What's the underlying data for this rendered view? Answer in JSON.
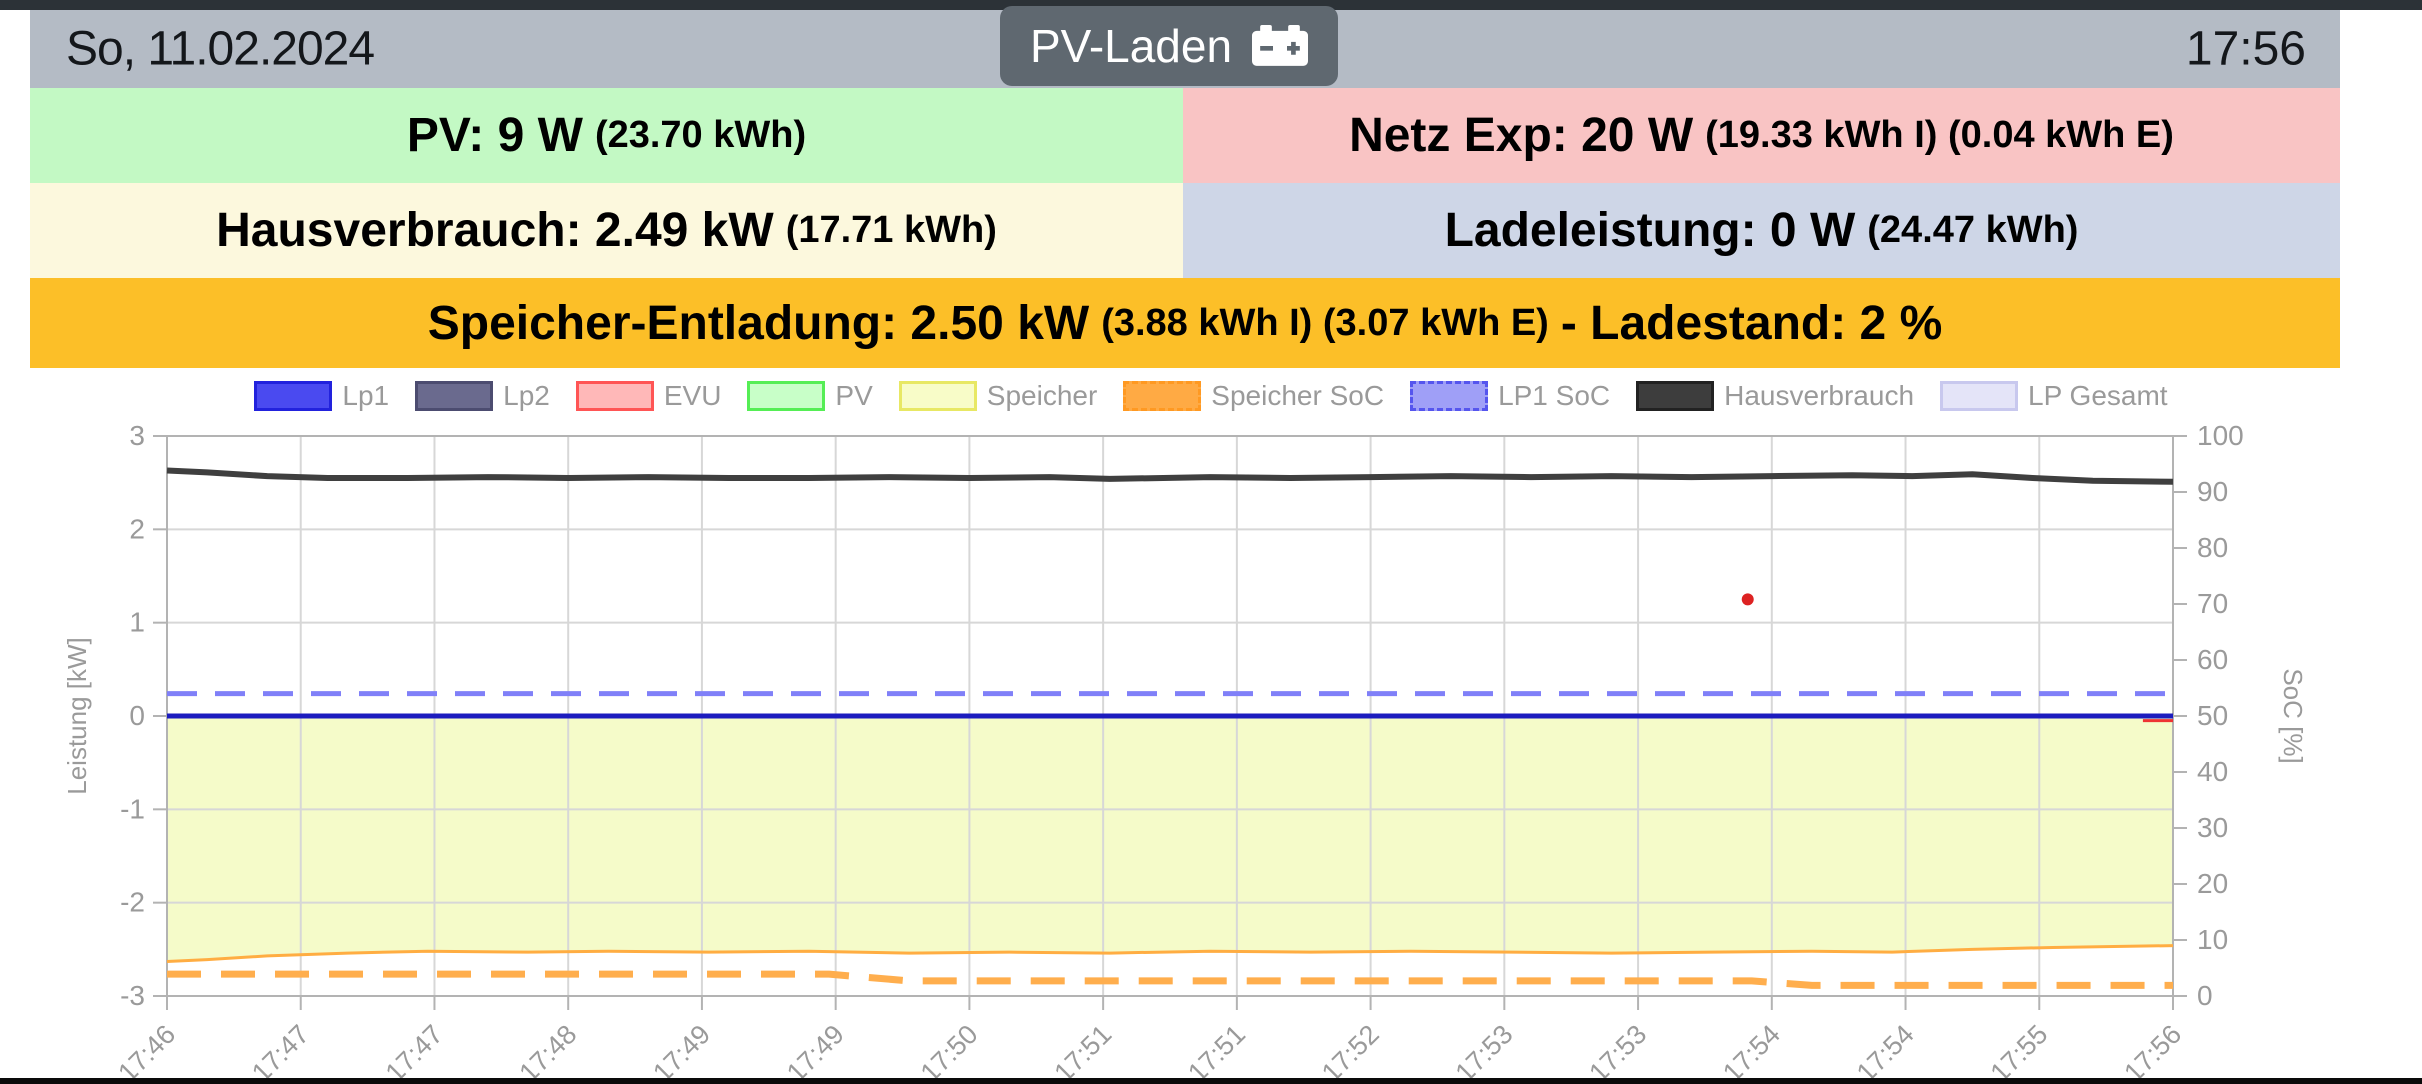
{
  "header": {
    "date": "So, 11.02.2024",
    "time": "17:56",
    "mode_button_label": "PV-Laden",
    "bar_color": "#b4bbc5",
    "button_color": "#5f6870"
  },
  "tiles": {
    "pv": {
      "main": "PV: 9 W",
      "sub": "(23.70 kWh)",
      "bg": "#c3f9c4"
    },
    "netz": {
      "main": "Netz Exp: 20 W",
      "sub": "(19.33 kWh I) (0.04 kWh E)",
      "bg": "#f9c4c4"
    },
    "haus": {
      "main": "Hausverbrauch: 2.49 kW",
      "sub": "(17.71 kWh)",
      "bg": "#fcf8dd"
    },
    "lade": {
      "main": "Ladeleistung: 0 W",
      "sub": "(24.47 kWh)",
      "bg": "#ced6e7"
    },
    "speicher": {
      "main": "Speicher-Entladung: 2.50 kW",
      "sub": "(3.88 kWh I) (3.07 kWh E)",
      "main2": "- Ladestand: 2 %",
      "bg": "#fcbf28"
    }
  },
  "chart_data": {
    "type": "line",
    "title": "",
    "grid": true,
    "legend_position": "top-center",
    "axes": {
      "left": {
        "label": "Leistung [kW]",
        "range": [
          -3,
          3
        ],
        "ticks": [
          3,
          2,
          1,
          0,
          -1,
          -2,
          -3
        ]
      },
      "right": {
        "label": "SoC [%]",
        "range": [
          0,
          100
        ],
        "ticks": [
          100,
          90,
          80,
          70,
          60,
          50,
          40,
          30,
          20,
          10,
          0
        ]
      },
      "x": {
        "tick_labels": [
          "17:46",
          "17:47",
          "17:47",
          "17:48",
          "17:49",
          "17:49",
          "17:50",
          "17:51",
          "17:51",
          "17:52",
          "17:53",
          "17:53",
          "17:54",
          "17:54",
          "17:55",
          "17:56"
        ]
      }
    },
    "legend": [
      {
        "label": "Lp1",
        "fill": "#4a4af0",
        "border": "#2222dd",
        "dash": false
      },
      {
        "label": "Lp2",
        "fill": "#6a6a8e",
        "border": "#4c4c70",
        "dash": false
      },
      {
        "label": "EVU",
        "fill": "#ffb8b8",
        "border": "#ff5555",
        "dash": false
      },
      {
        "label": "PV",
        "fill": "#c8ffc8",
        "border": "#55ee55",
        "dash": false
      },
      {
        "label": "Speicher",
        "fill": "#f8fcc8",
        "border": "#e8e864",
        "dash": false
      },
      {
        "label": "Speicher SoC",
        "fill": "#ffaa44",
        "border": "#ff9922",
        "dash": true
      },
      {
        "label": "LP1 SoC",
        "fill": "#9f9ff7",
        "border": "#5555ee",
        "dash": true
      },
      {
        "label": "Hausverbrauch",
        "fill": "#3d3d3d",
        "border": "#222222",
        "dash": false
      },
      {
        "label": "LP Gesamt",
        "fill": "#e4e4f8",
        "border": "#c8c8ee",
        "dash": false
      }
    ],
    "series": [
      {
        "name": "Speicher",
        "type": "area",
        "axis": "kw",
        "color": "#ffad42",
        "fill": "#f5fbc9",
        "width": 3,
        "baseline": 0,
        "points": [
          [
            0,
            -2.63
          ],
          [
            0.02,
            -2.61
          ],
          [
            0.05,
            -2.57
          ],
          [
            0.09,
            -2.54
          ],
          [
            0.13,
            -2.52
          ],
          [
            0.18,
            -2.53
          ],
          [
            0.22,
            -2.52
          ],
          [
            0.27,
            -2.53
          ],
          [
            0.32,
            -2.52
          ],
          [
            0.37,
            -2.54
          ],
          [
            0.42,
            -2.53
          ],
          [
            0.47,
            -2.54
          ],
          [
            0.52,
            -2.52
          ],
          [
            0.57,
            -2.53
          ],
          [
            0.62,
            -2.52
          ],
          [
            0.67,
            -2.53
          ],
          [
            0.72,
            -2.54
          ],
          [
            0.77,
            -2.53
          ],
          [
            0.82,
            -2.52
          ],
          [
            0.86,
            -2.53
          ],
          [
            0.9,
            -2.5
          ],
          [
            0.94,
            -2.48
          ],
          [
            1,
            -2.46
          ]
        ]
      },
      {
        "name": "EVU",
        "type": "line",
        "axis": "kw",
        "color": "#ee3333",
        "width": 3,
        "points": [
          [
            0.985,
            -0.05
          ],
          [
            1,
            -0.05
          ]
        ]
      },
      {
        "name": "Lp1",
        "type": "line",
        "axis": "kw",
        "color": "#1c1cbe",
        "width": 5,
        "points": [
          [
            0,
            0
          ],
          [
            1,
            0
          ]
        ]
      },
      {
        "name": "LP1 SoC",
        "type": "line",
        "axis": "soc",
        "color": "#8080f8",
        "width": 5,
        "dash": [
          30,
          18
        ],
        "points": [
          [
            0,
            54
          ],
          [
            1,
            54
          ]
        ]
      },
      {
        "name": "Hausverbrauch",
        "type": "line",
        "axis": "kw",
        "color": "#3f3f3f",
        "width": 6,
        "points": [
          [
            0,
            2.63
          ],
          [
            0.02,
            2.61
          ],
          [
            0.05,
            2.57
          ],
          [
            0.08,
            2.55
          ],
          [
            0.12,
            2.55
          ],
          [
            0.16,
            2.56
          ],
          [
            0.2,
            2.55
          ],
          [
            0.24,
            2.56
          ],
          [
            0.28,
            2.55
          ],
          [
            0.32,
            2.55
          ],
          [
            0.36,
            2.56
          ],
          [
            0.4,
            2.55
          ],
          [
            0.44,
            2.56
          ],
          [
            0.47,
            2.54
          ],
          [
            0.52,
            2.56
          ],
          [
            0.56,
            2.55
          ],
          [
            0.6,
            2.56
          ],
          [
            0.64,
            2.57
          ],
          [
            0.68,
            2.56
          ],
          [
            0.72,
            2.57
          ],
          [
            0.76,
            2.56
          ],
          [
            0.8,
            2.57
          ],
          [
            0.84,
            2.58
          ],
          [
            0.87,
            2.57
          ],
          [
            0.9,
            2.59
          ],
          [
            0.93,
            2.55
          ],
          [
            0.96,
            2.52
          ],
          [
            1,
            2.51
          ]
        ]
      },
      {
        "name": "Speicher SoC",
        "type": "line",
        "axis": "soc",
        "color": "#ffae4d",
        "width": 7,
        "dash": [
          34,
          20
        ],
        "points": [
          [
            0,
            3.9
          ],
          [
            0.33,
            3.9
          ],
          [
            0.37,
            2.7
          ],
          [
            0.79,
            2.7
          ],
          [
            0.82,
            1.9
          ],
          [
            1,
            1.9
          ]
        ]
      },
      {
        "name": "EVU Punkt",
        "type": "dot",
        "axis": "kw",
        "color": "#dd2222",
        "r": 6,
        "points": [
          [
            0.788,
            1.25
          ]
        ]
      }
    ],
    "plot_colors": {
      "grid": "#d7d7d7",
      "border": "#b3b3b3",
      "tick_text": "#9a9a9a"
    }
  }
}
